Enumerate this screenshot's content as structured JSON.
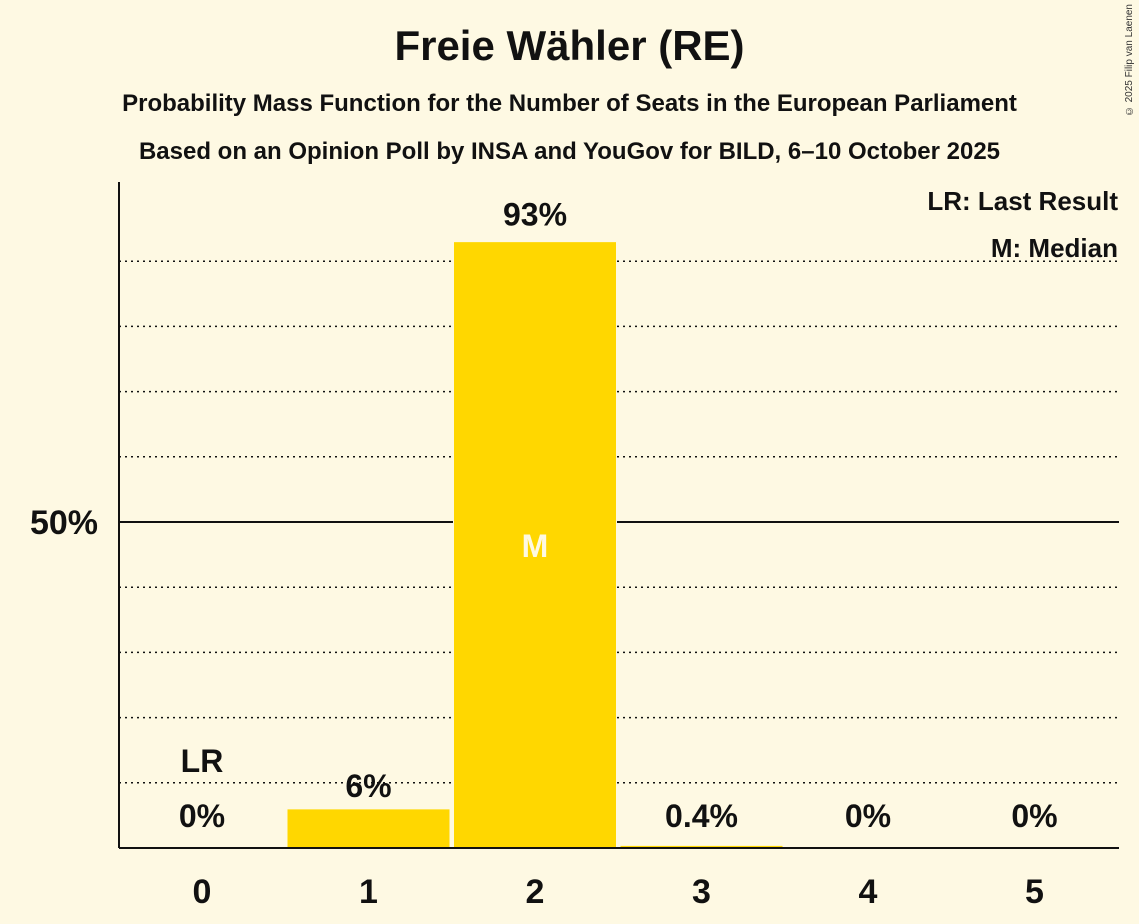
{
  "title": "Freie Wähler (RE)",
  "subtitle_1": "Probability Mass Function for the Number of Seats in the European Parliament",
  "subtitle_2": "Based on an Opinion Poll by INSA and YouGov for BILD, 6–10 October 2025",
  "copyright": "© 2025 Filip van Laenen",
  "colors": {
    "bar": "#ffd700",
    "background": "#fef9e3",
    "text": "#111111"
  },
  "chart_data": {
    "type": "bar",
    "title": "Freie Wähler (RE)",
    "categories": [
      "0",
      "1",
      "2",
      "3",
      "4",
      "5"
    ],
    "values": [
      0,
      6,
      93,
      0.4,
      0,
      0
    ],
    "data_labels": [
      "0%",
      "6%",
      "93%",
      "0.4%",
      "0%",
      "0%"
    ],
    "ylim": [
      0,
      100
    ],
    "y_ticks": [
      {
        "value": 50,
        "label": "50%"
      }
    ],
    "grid": "dotted every 10%, solid at 50%",
    "markers": [
      {
        "category": "0",
        "label": "LR"
      },
      {
        "category": "2",
        "label": "M"
      }
    ],
    "legend": [
      "LR: Last Result",
      "M: Median"
    ],
    "legend_position": "top-right"
  }
}
